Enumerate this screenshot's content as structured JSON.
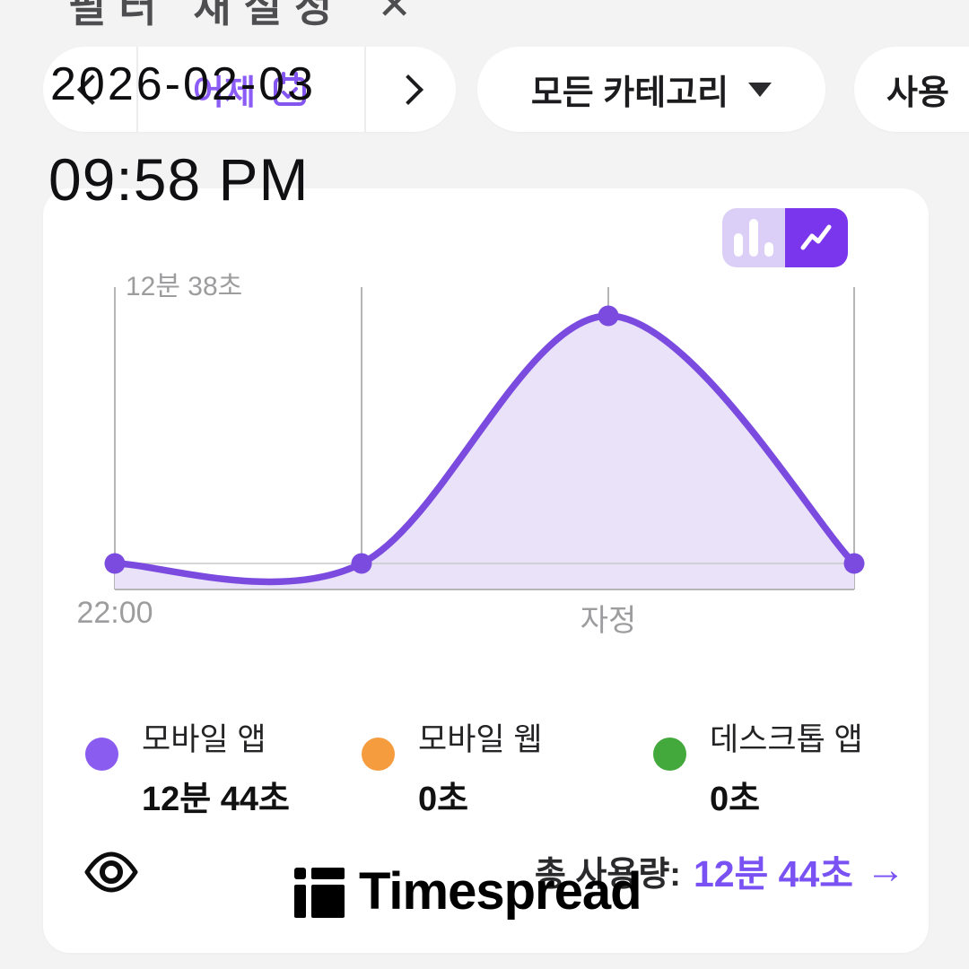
{
  "top_banner": {
    "text": "필터 재설정",
    "close_label": "✕"
  },
  "toolbar": {
    "date_overlay": "2026-02-03",
    "yesterday_label": "어제",
    "category_label": "모든 카테고리",
    "usage_label": "사용"
  },
  "time_overlay": "09:58 PM",
  "toggle": {
    "options": [
      "bar-chart",
      "line-chart"
    ],
    "active": "line-chart"
  },
  "chart_data": {
    "type": "area",
    "x_gridline_count": 4,
    "x_tick_labels": [
      {
        "label": "22:00",
        "gridline_index": 0
      },
      {
        "label": "자정",
        "gridline_index": 2
      }
    ],
    "max_label": "12분 38초",
    "max_seconds": 758,
    "series": [
      {
        "name": "모바일 앱",
        "color": "#7b4be0",
        "fill_color": "#e9e2f8",
        "values_seconds": [
          0,
          0,
          758,
          0
        ]
      }
    ],
    "grid_color": "#b5b5b7",
    "zero_line_color": "#c9c9cb",
    "legend_position": "bottom"
  },
  "legend": [
    {
      "label": "모바일 앱",
      "value": "12분 44초",
      "color": "#8a5cf0"
    },
    {
      "label": "모바일 웹",
      "value": "0초",
      "color": "#f59c3e"
    },
    {
      "label": "데스크톱 앱",
      "value": "0초",
      "color": "#43a93c"
    }
  ],
  "footer": {
    "total_label": "총 사용량:",
    "total_value": "12분 44초",
    "arrow": "→"
  },
  "watermark": {
    "brand": "Timespread"
  }
}
